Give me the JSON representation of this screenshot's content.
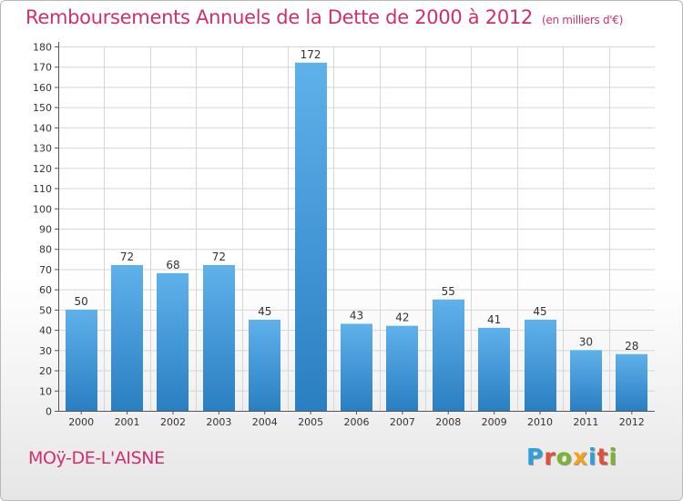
{
  "title": "Remboursements Annuels de la Dette de 2000 à 2012",
  "unit_note": "(en milliers d'€)",
  "place_name": "MOÿ-DE-L'AISNE",
  "logo": {
    "text": "Proxiti",
    "letters": [
      {
        "ch": "P",
        "color": "#2e9fd8"
      },
      {
        "ch": "r",
        "color": "#e24e3a"
      },
      {
        "ch": "o",
        "color": "#7bb52e"
      },
      {
        "ch": "x",
        "color": "#f2a31b"
      },
      {
        "ch": "i",
        "color": "#2e9fd8"
      },
      {
        "ch": "t",
        "color": "#e24e3a"
      },
      {
        "ch": "i",
        "color": "#7bb52e"
      }
    ]
  },
  "colors": {
    "title": "#cf2f6e",
    "bar_light": "#5fb1ea",
    "bar_dark": "#2a7fc2",
    "grid": "#d6d6d6",
    "text": "#333333"
  },
  "chart_data": {
    "type": "bar",
    "categories": [
      "2000",
      "2001",
      "2002",
      "2003",
      "2004",
      "2005",
      "2006",
      "2007",
      "2008",
      "2009",
      "2010",
      "2011",
      "2012"
    ],
    "values": [
      50,
      72,
      68,
      72,
      45,
      172,
      43,
      42,
      55,
      41,
      45,
      30,
      28
    ],
    "ylim": [
      0,
      180
    ],
    "ytick_step": 10,
    "grid": true,
    "data_labels": true
  }
}
